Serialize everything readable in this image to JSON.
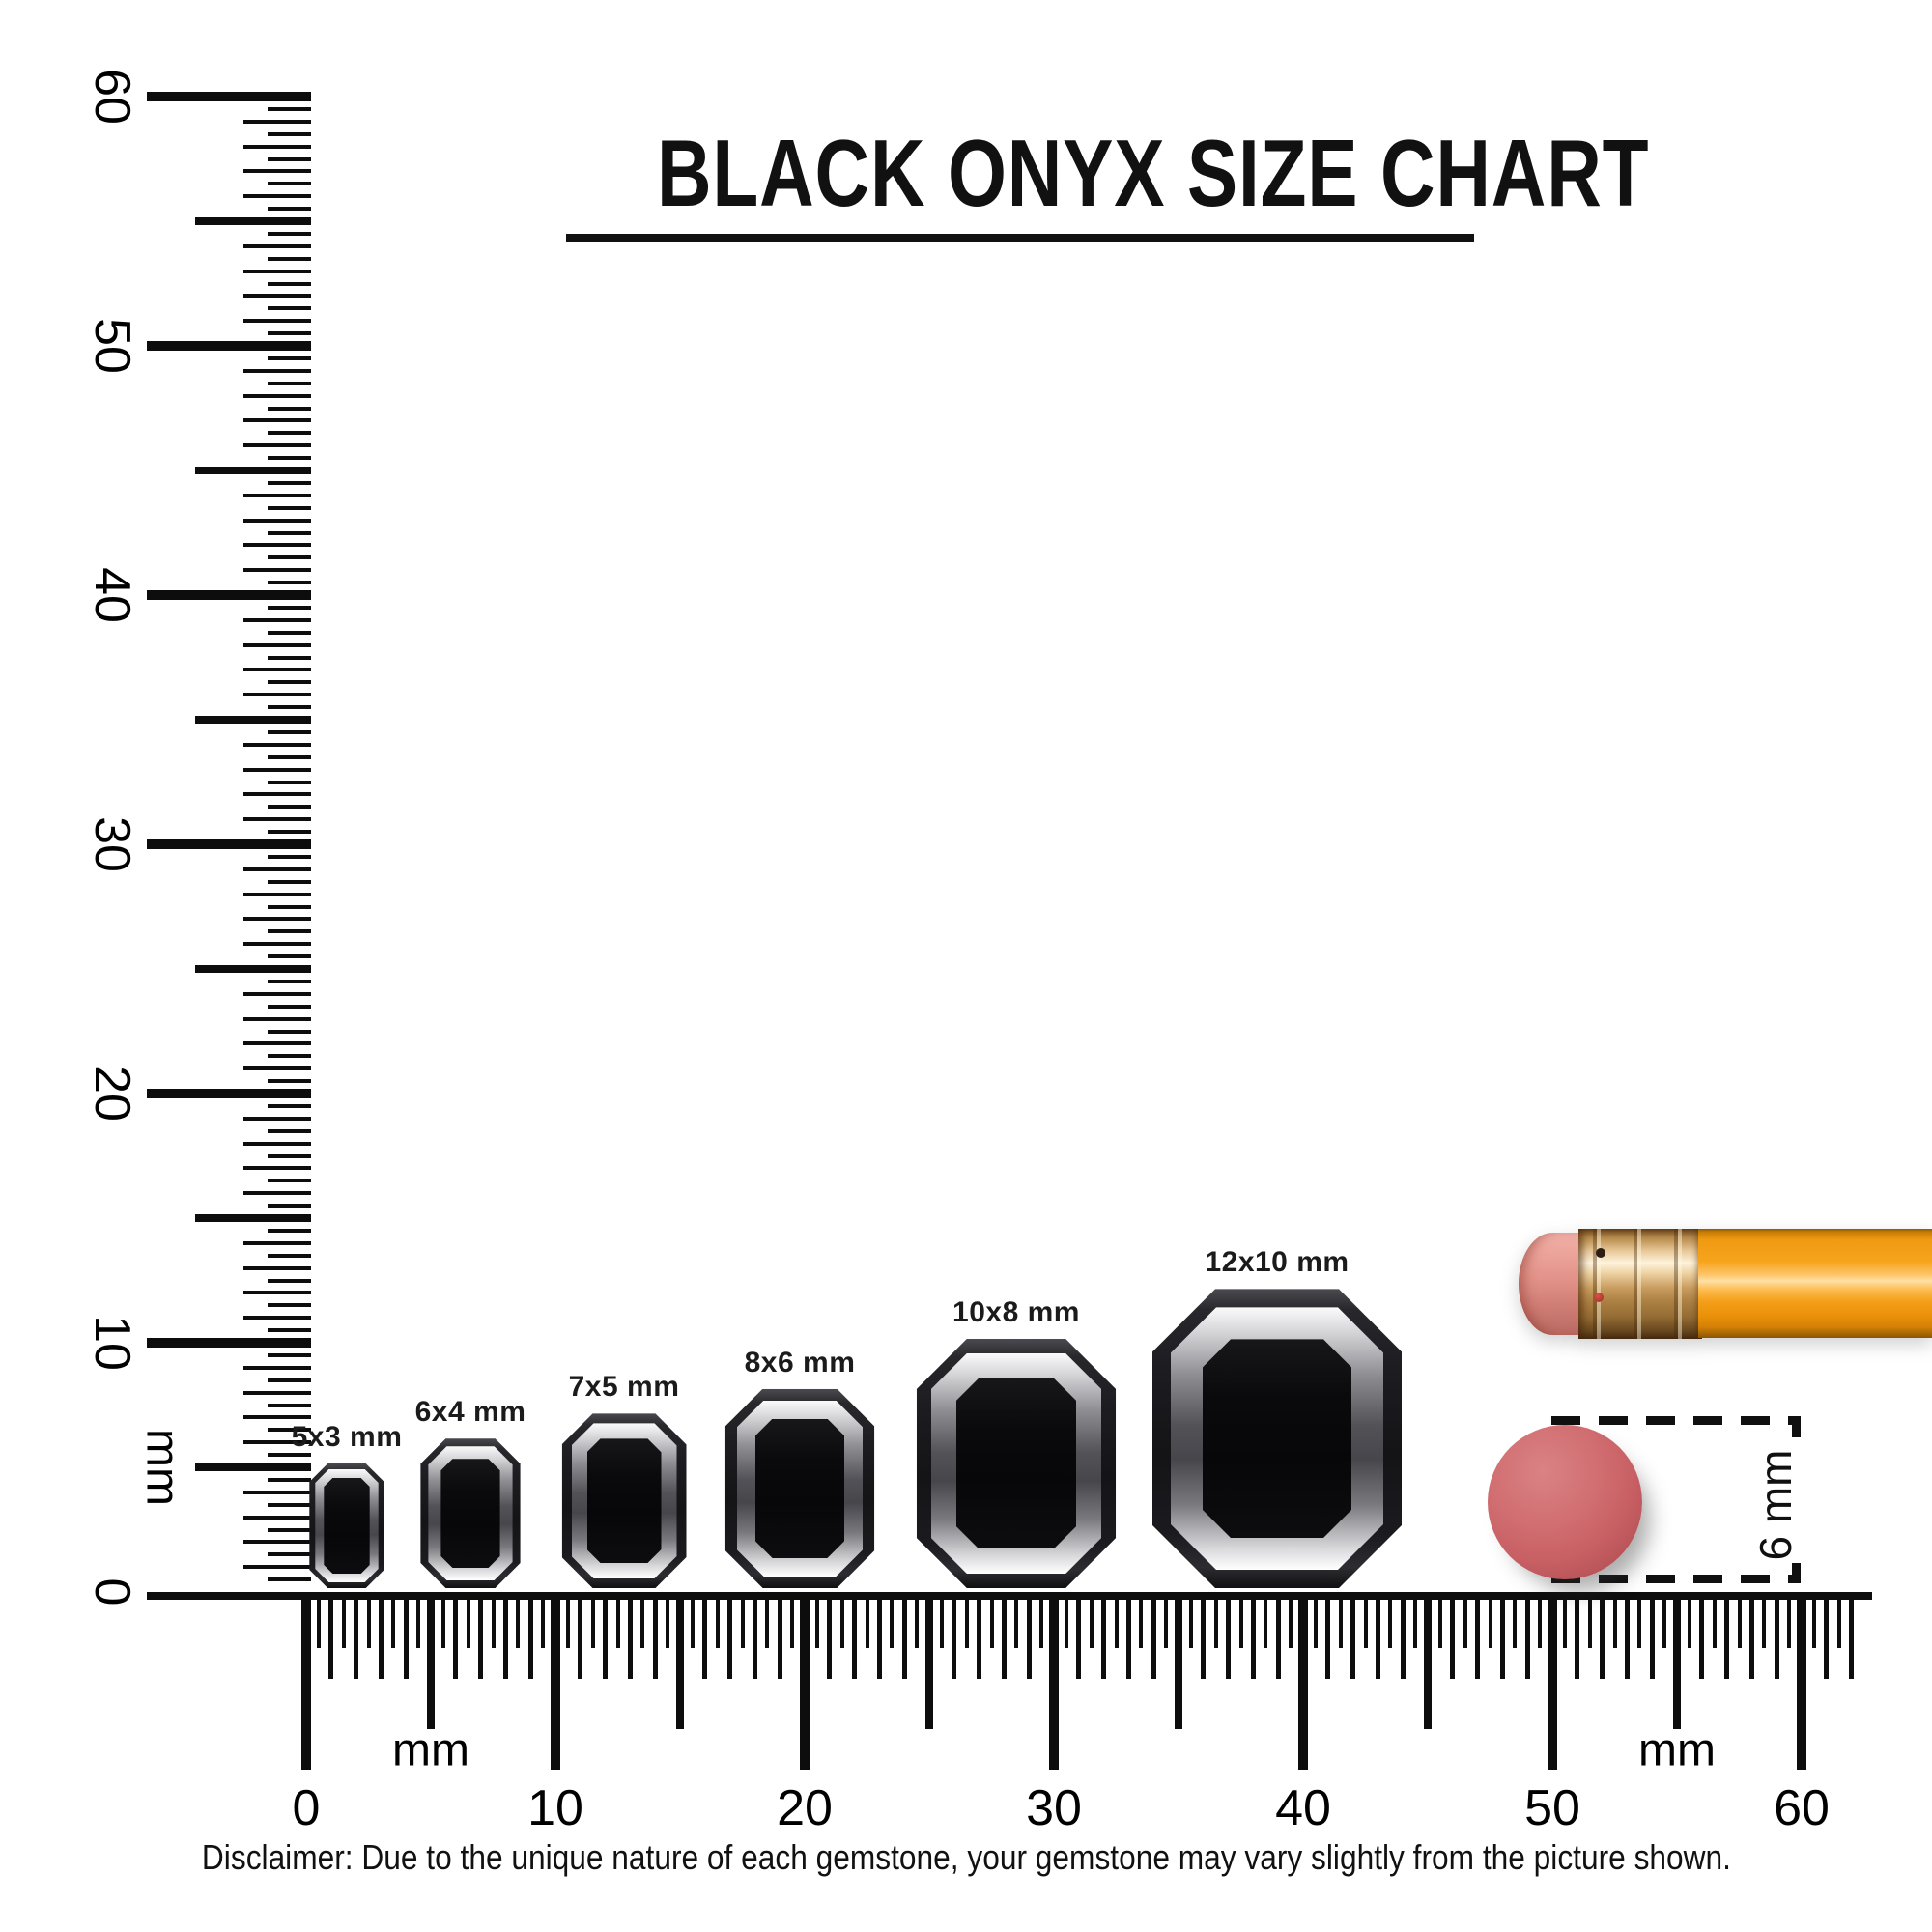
{
  "title": {
    "text": "BLACK ONYX SIZE CHART"
  },
  "rulers": {
    "unit_label": "mm",
    "vertical": {
      "tick_labels": [
        "0",
        "10",
        "20",
        "30",
        "40",
        "50",
        "60"
      ],
      "range_mm": [
        0,
        60
      ]
    },
    "horizontal": {
      "tick_labels": [
        "0",
        "10",
        "20",
        "30",
        "40",
        "50",
        "60"
      ],
      "range_mm": [
        0,
        60
      ]
    }
  },
  "gems": [
    {
      "label": "5x3 mm",
      "height_mm": 5,
      "width_mm": 3
    },
    {
      "label": "6x4 mm",
      "height_mm": 6,
      "width_mm": 4
    },
    {
      "label": "7x5 mm",
      "height_mm": 7,
      "width_mm": 5
    },
    {
      "label": "8x6 mm",
      "height_mm": 8,
      "width_mm": 6
    },
    {
      "label": "10x8 mm",
      "height_mm": 10,
      "width_mm": 8
    },
    {
      "label": "12x10 mm",
      "height_mm": 12,
      "width_mm": 10
    }
  ],
  "reference": {
    "eraser_label": "6 mm",
    "eraser_diameter_mm": 6,
    "eraser_color": "#cf6569",
    "pencil_body_color": "#f7a41d",
    "pencil_ferrule_color": "#e7c898",
    "pencil_eraser_color": "#e29289"
  },
  "disclaimer": "Disclaimer: Due to the unique nature of each gemstone, your gemstone may vary slightly from the picture shown.",
  "chart_data": {
    "type": "table",
    "title": "BLACK ONYX SIZE CHART",
    "unit": "mm",
    "categories": [
      "5x3 mm",
      "6x4 mm",
      "7x5 mm",
      "8x6 mm",
      "10x8 mm",
      "12x10 mm"
    ],
    "series": [
      {
        "name": "length_mm",
        "values": [
          5,
          6,
          7,
          8,
          10,
          12
        ]
      },
      {
        "name": "width_mm",
        "values": [
          3,
          4,
          5,
          6,
          8,
          10
        ]
      }
    ],
    "ruler_range_mm": [
      0,
      60
    ],
    "ruler_major_step_mm": 10,
    "ruler_medium_step_mm": 5,
    "ruler_minor_step_mm": 0.5,
    "reference_object": "pencil eraser, 6 mm diameter"
  }
}
